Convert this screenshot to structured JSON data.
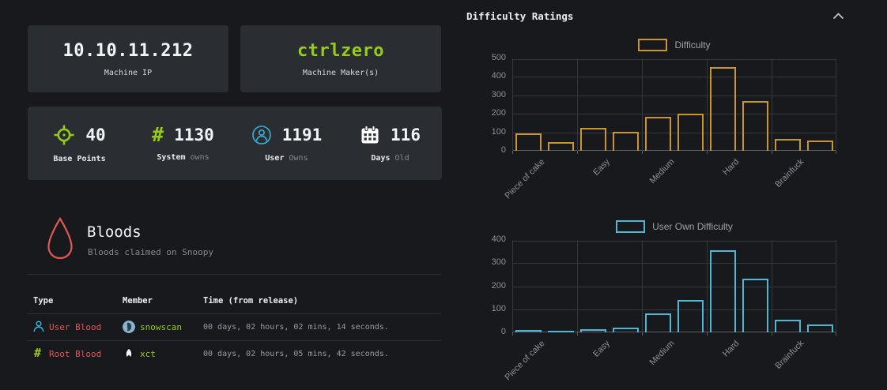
{
  "colors": {
    "bg": "#17191d",
    "card": "#2a2e33",
    "green": "#97cb1b",
    "red": "#e25855",
    "blue": "#3cb0d8",
    "muted": "#85898d",
    "grid": "#34383d",
    "axis": "#5a6065",
    "divider": "#2b3036",
    "chartlabel": "#8d9195"
  },
  "left_panel": {
    "ip_card": {
      "value": "10.10.11.212",
      "label": "Machine IP"
    },
    "maker_card": {
      "value": "ctrlzero",
      "label": "Machine Maker(s)"
    },
    "stats": [
      {
        "icon": "crosshair-icon",
        "value": "40",
        "label": "Base Points",
        "label_muted": ""
      },
      {
        "icon": "hash-icon",
        "value": "1130",
        "label": "System",
        "label_muted": "owns"
      },
      {
        "icon": "user-circle-icon",
        "value": "1191",
        "label": "User",
        "label_muted": "Owns"
      },
      {
        "icon": "calendar-icon",
        "value": "116",
        "label": "Days",
        "label_muted": "Old"
      }
    ],
    "bloods": {
      "title": "Bloods",
      "subtitle": "Bloods claimed on Snoopy",
      "headers": {
        "type": "Type",
        "member": "Member",
        "time": "Time (from release)"
      },
      "rows": [
        {
          "type": "User Blood",
          "type_icon": "user-icon",
          "member": "snowscan",
          "time": "00 days, 02 hours, 02 mins, 14 seconds."
        },
        {
          "type": "Root Blood",
          "type_icon": "hash-icon",
          "member": "xct",
          "time": "00 days, 02 hours, 05 mins, 42 seconds."
        }
      ]
    }
  },
  "right_panel": {
    "title": "Difficulty Ratings",
    "collapse_icon": "chevron-up-icon"
  },
  "chart_data": [
    {
      "type": "bar",
      "legend": "Difficulty",
      "categories": [
        "Piece of cake",
        "Easy",
        "Medium",
        "Hard",
        "Brainfuck"
      ],
      "values": [
        92,
        48,
        126,
        103,
        185,
        202,
        452,
        270,
        62,
        56
      ],
      "ylim": [
        0,
        500
      ],
      "ytick_step": 100,
      "color": "#c9952f",
      "legend_position": "top-center",
      "grid": true
    },
    {
      "type": "bar",
      "legend": "User Own Difficulty",
      "categories": [
        "Piece of cake",
        "Easy",
        "Medium",
        "Hard",
        "Brainfuck"
      ],
      "values": [
        10,
        3,
        14,
        22,
        82,
        140,
        357,
        233,
        55,
        34
      ],
      "ylim": [
        0,
        400
      ],
      "ytick_step": 100,
      "color": "#4db8d6",
      "legend_position": "top-center",
      "grid": true
    }
  ]
}
